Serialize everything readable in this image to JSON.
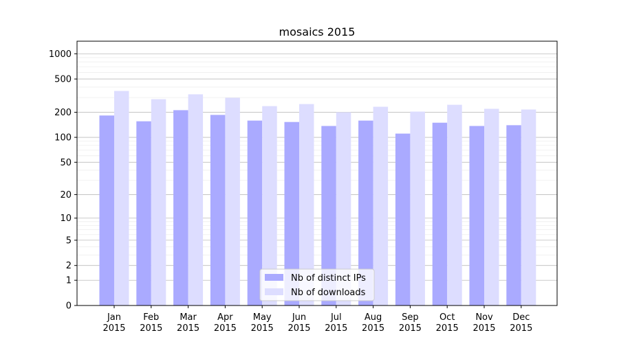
{
  "chart_data": {
    "type": "bar",
    "title": "mosaics 2015",
    "xlabel": "",
    "ylabel": "",
    "yscale": "symlog (log10(1+y))",
    "ylim": [
      0,
      1400
    ],
    "yticks": [
      0,
      1,
      2,
      5,
      10,
      20,
      50,
      100,
      200,
      500,
      1000
    ],
    "grid": true,
    "legend_position": "bottom-center",
    "categories": [
      "Jan\n2015",
      "Feb\n2015",
      "Mar\n2015",
      "Apr\n2015",
      "May\n2015",
      "Jun\n2015",
      "Jul\n2015",
      "Aug\n2015",
      "Sep\n2015",
      "Oct\n2015",
      "Nov\n2015",
      "Dec\n2015"
    ],
    "series": [
      {
        "name": "Nb of distinct IPs",
        "color": "#aaaaff",
        "values": [
          183,
          156,
          212,
          186,
          159,
          153,
          137,
          159,
          111,
          150,
          137,
          140
        ]
      },
      {
        "name": "Nb of downloads",
        "color": "#ddddff",
        "values": [
          360,
          287,
          328,
          298,
          237,
          251,
          200,
          233,
          204,
          246,
          220,
          216
        ]
      }
    ]
  }
}
